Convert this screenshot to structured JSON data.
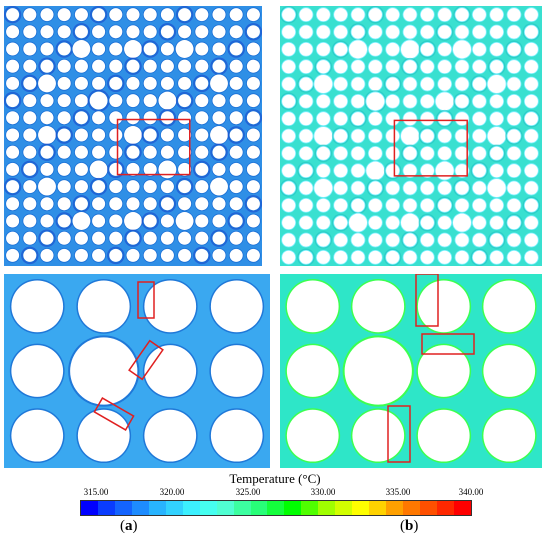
{
  "figure": {
    "legend_title": "Temperature (°C)",
    "tick_labels": [
      "315.00",
      "320.00",
      "325.00",
      "330.00",
      "335.00",
      "340.00"
    ],
    "colorbar_colors": [
      "#0000ff",
      "#0a3cff",
      "#1464ff",
      "#1e8cff",
      "#28b4ff",
      "#32d2ff",
      "#3cf0ff",
      "#46fff0",
      "#50ffd2",
      "#3cffa0",
      "#28ff78",
      "#14ff3c",
      "#00ff00",
      "#50ff00",
      "#a0ff00",
      "#d2ff00",
      "#ffff00",
      "#ffd200",
      "#ffa000",
      "#ff7800",
      "#ff5000",
      "#ff2800",
      "#ff0000"
    ],
    "panel_a_label": "a",
    "panel_b_label": "b",
    "accent_colors": {
      "case_a_field": "#2f8fe6",
      "case_b_field": "#39e0d0",
      "highlight_box": "#e02020"
    }
  }
}
